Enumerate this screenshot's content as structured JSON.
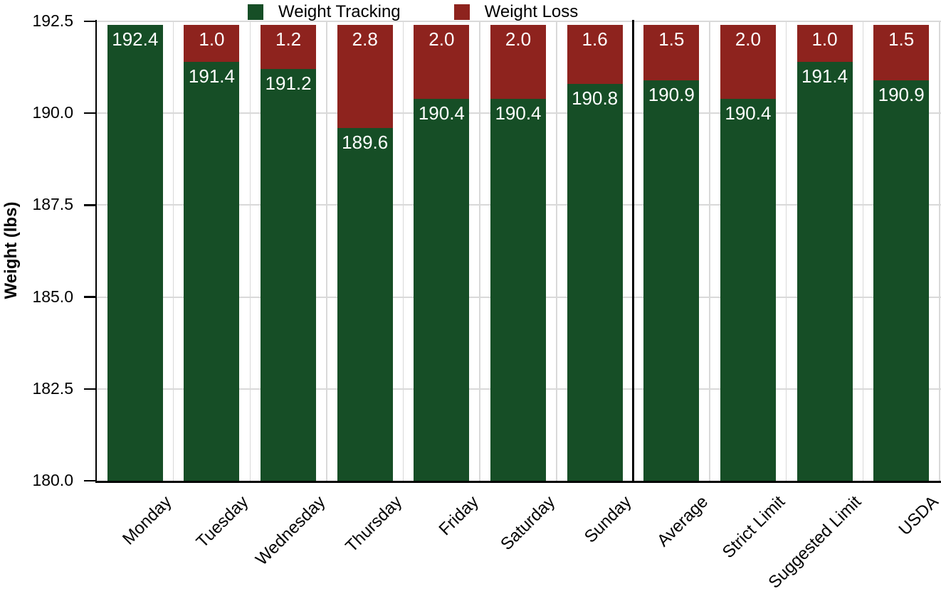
{
  "chart_data": {
    "type": "bar",
    "stacked": true,
    "title": "",
    "xlabel": "",
    "ylabel": "Weight (lbs)",
    "categories": [
      "Monday",
      "Tuesday",
      "Wednesday",
      "Thursday",
      "Friday",
      "Saturday",
      "Sunday",
      "Average",
      "Strict Limit",
      "Suggested Limit",
      "USDA"
    ],
    "series": [
      {
        "name": "Weight Tracking",
        "color": "#164e26",
        "values": [
          192.4,
          191.4,
          191.2,
          189.6,
          190.4,
          190.4,
          190.8,
          190.9,
          190.4,
          191.4,
          190.9
        ],
        "bar_labels": [
          "192.4",
          "191.4",
          "191.2",
          "189.6",
          "190.4",
          "190.4",
          "190.8",
          "190.9",
          "190.4",
          "191.4",
          "190.9"
        ]
      },
      {
        "name": "Weight Loss",
        "color": "#8e231e",
        "values": [
          0,
          1.0,
          1.2,
          2.8,
          2.0,
          2.0,
          1.6,
          1.5,
          2.0,
          1.0,
          1.5
        ],
        "bar_labels": [
          "",
          "1.0",
          "1.2",
          "2.8",
          "2.0",
          "2.0",
          "1.6",
          "1.5",
          "2.0",
          "1.0",
          "1.5"
        ]
      }
    ],
    "ylim": [
      180.0,
      192.5
    ],
    "yticks": [
      "192.5",
      "190.0",
      "187.5",
      "185.0",
      "182.5",
      "180.0"
    ],
    "grid": true,
    "legend_position": "top",
    "bar_label_color": "#ffffff",
    "grid_color": "#d9d9d9",
    "axis_color": "#000000",
    "separator_after_category": "Sunday",
    "separator_after_index": 6
  }
}
